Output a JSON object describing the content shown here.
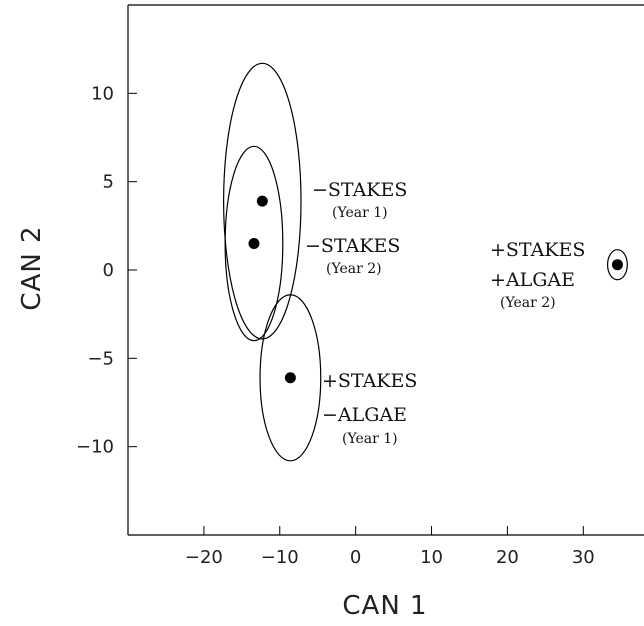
{
  "chart_data": {
    "type": "scatter",
    "title": "",
    "xlabel": "CAN 1",
    "ylabel": "CAN 2",
    "xlim": [
      -30,
      38
    ],
    "ylim": [
      -15,
      15
    ],
    "xticks": [
      -20,
      -10,
      0,
      10,
      20,
      30
    ],
    "yticks": [
      10,
      5,
      0,
      -5,
      -10
    ],
    "grid": false,
    "groups": [
      {
        "id": "stakes-minus-y1",
        "centroid": [
          -12.3,
          3.9
        ],
        "ellipse_radius": [
          5.1,
          7.8
        ],
        "label_lines": [
          "−STAKES",
          "(Year 1)"
        ]
      },
      {
        "id": "stakes-minus-y2",
        "centroid": [
          -13.4,
          1.5
        ],
        "ellipse_radius": [
          3.8,
          5.5
        ],
        "label_lines": [
          "−STAKES",
          "(Year 2)"
        ]
      },
      {
        "id": "stakes-plus-algae-minus-y1",
        "centroid": [
          -8.6,
          -6.1
        ],
        "ellipse_radius": [
          4.0,
          4.7
        ],
        "label_lines": [
          "+STAKES",
          "−ALGAE",
          "(Year 1)"
        ]
      },
      {
        "id": "stakes-plus-algae-plus-y2",
        "centroid": [
          34.5,
          0.3
        ],
        "ellipse_radius": [
          1.3,
          0.85
        ],
        "label_lines": [
          "+STAKES",
          "+ALGAE",
          "(Year 2)"
        ]
      }
    ]
  }
}
